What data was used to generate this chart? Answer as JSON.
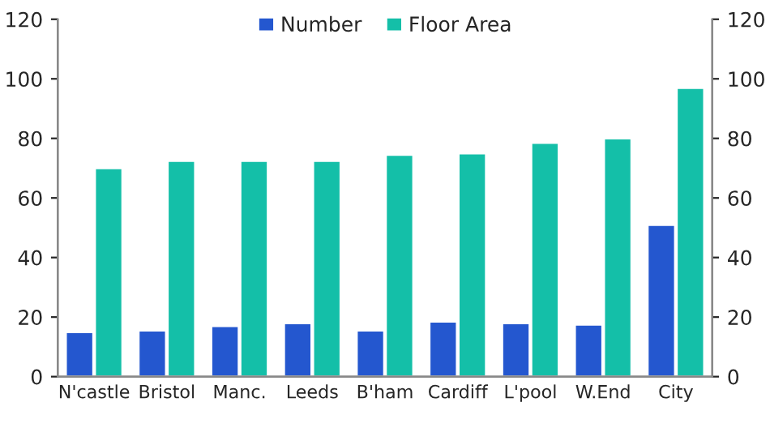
{
  "chart_data": {
    "type": "bar",
    "categories": [
      "N'castle",
      "Bristol",
      "Manc.",
      "Leeds",
      "B'ham",
      "Cardiff",
      "L'pool",
      "W.End",
      "City"
    ],
    "series": [
      {
        "name": "Number",
        "color": "#2457cf",
        "values": [
          15,
          15.5,
          17,
          18,
          15.5,
          18.5,
          18,
          17.5,
          51
        ]
      },
      {
        "name": "Floor Area",
        "color": "#14bfa8",
        "values": [
          70,
          72.5,
          72.5,
          72.5,
          74.5,
          75,
          78.5,
          80,
          97
        ]
      }
    ],
    "ylim": [
      0,
      120
    ],
    "yticks": [
      0,
      20,
      40,
      60,
      80,
      100,
      120
    ],
    "y2lim": [
      0,
      120
    ],
    "y2ticks": [
      0,
      20,
      40,
      60,
      80,
      100,
      120
    ],
    "legend": "top",
    "grid": false
  }
}
